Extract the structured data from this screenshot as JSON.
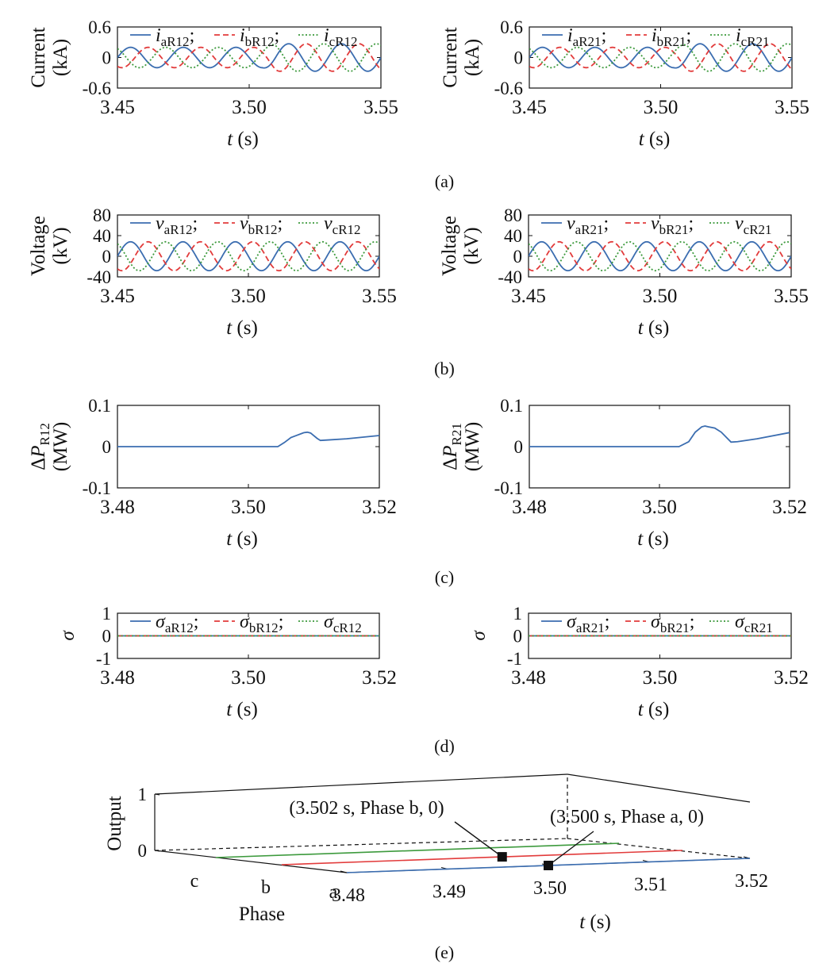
{
  "colors": {
    "a": "#3b6db0",
    "b": "#e23b3b",
    "c": "#3d9a3d",
    "axis": "#111111"
  },
  "panel_labels": [
    "(a)",
    "(b)",
    "(c)",
    "(d)",
    "(e)"
  ],
  "chart_data": [
    {
      "type": "line",
      "panel": "a",
      "side": "R12",
      "ylabel": [
        "Current",
        "(kA)"
      ],
      "xlabel": {
        "italic": "t",
        "rest": " (s)"
      },
      "xlim": [
        3.45,
        3.55
      ],
      "ylim": [
        -0.6,
        0.6
      ],
      "xticks": [
        "3.45",
        "3.50",
        "3.55"
      ],
      "yticks": [
        "0.6",
        "0",
        "-0.6"
      ],
      "legend": [
        {
          "sym": "i",
          "sub": "aR12",
          "sep": ";"
        },
        {
          "sym": "i",
          "sub": "bR12",
          "sep": ";"
        },
        {
          "sym": "i",
          "sub": "cR12",
          "sep": ""
        }
      ],
      "series": [
        {
          "phase": "a",
          "style": "solid",
          "freq_hz": 50,
          "phase_deg": 0,
          "amplitude": [
            [
              3.45,
              0.2
            ],
            [
              3.505,
              0.2
            ],
            [
              3.51,
              0.27
            ],
            [
              3.55,
              0.27
            ]
          ]
        },
        {
          "phase": "b",
          "style": "dashed",
          "freq_hz": 50,
          "phase_deg": -120,
          "amplitude": [
            [
              3.45,
              0.2
            ],
            [
              3.505,
              0.2
            ],
            [
              3.51,
              0.27
            ],
            [
              3.55,
              0.27
            ]
          ]
        },
        {
          "phase": "c",
          "style": "dotted",
          "freq_hz": 50,
          "phase_deg": 120,
          "amplitude": [
            [
              3.45,
              0.2
            ],
            [
              3.505,
              0.2
            ],
            [
              3.51,
              0.27
            ],
            [
              3.55,
              0.27
            ]
          ]
        }
      ]
    },
    {
      "type": "line",
      "panel": "a",
      "side": "R21",
      "ylabel": [
        "Current",
        "(kA)"
      ],
      "xlabel": {
        "italic": "t",
        "rest": " (s)"
      },
      "xlim": [
        3.45,
        3.55
      ],
      "ylim": [
        -0.6,
        0.6
      ],
      "xticks": [
        "3.45",
        "3.50",
        "3.55"
      ],
      "yticks": [
        "0.6",
        "0",
        "-0.6"
      ],
      "legend": [
        {
          "sym": "i",
          "sub": "aR21",
          "sep": ";"
        },
        {
          "sym": "i",
          "sub": "bR21",
          "sep": ";"
        },
        {
          "sym": "i",
          "sub": "cR21",
          "sep": ""
        }
      ],
      "series": [
        {
          "phase": "a",
          "style": "solid",
          "freq_hz": 50,
          "phase_deg": 0,
          "amplitude": [
            [
              3.45,
              0.2
            ],
            [
              3.505,
              0.2
            ],
            [
              3.51,
              0.27
            ],
            [
              3.55,
              0.27
            ]
          ]
        },
        {
          "phase": "b",
          "style": "dashed",
          "freq_hz": 50,
          "phase_deg": -120,
          "amplitude": [
            [
              3.45,
              0.2
            ],
            [
              3.505,
              0.2
            ],
            [
              3.51,
              0.27
            ],
            [
              3.55,
              0.27
            ]
          ]
        },
        {
          "phase": "c",
          "style": "dotted",
          "freq_hz": 50,
          "phase_deg": 120,
          "amplitude": [
            [
              3.45,
              0.2
            ],
            [
              3.505,
              0.2
            ],
            [
              3.51,
              0.27
            ],
            [
              3.55,
              0.27
            ]
          ]
        }
      ]
    },
    {
      "type": "line",
      "panel": "b",
      "side": "R12",
      "ylabel": [
        "Voltage",
        "(kV)"
      ],
      "xlabel": {
        "italic": "t",
        "rest": " (s)"
      },
      "xlim": [
        3.45,
        3.55
      ],
      "ylim": [
        -40,
        80
      ],
      "xticks": [
        "3.45",
        "3.50",
        "3.55"
      ],
      "yticks": [
        "80",
        "40",
        "0",
        "-40"
      ],
      "legend": [
        {
          "sym": "v",
          "sub": "aR12",
          "sep": ";"
        },
        {
          "sym": "v",
          "sub": "bR12",
          "sep": ";"
        },
        {
          "sym": "v",
          "sub": "cR12",
          "sep": ""
        }
      ],
      "series": [
        {
          "phase": "a",
          "style": "solid",
          "freq_hz": 50,
          "phase_deg": 0,
          "amplitude": [
            [
              3.45,
              28
            ],
            [
              3.55,
              28
            ]
          ]
        },
        {
          "phase": "b",
          "style": "dashed",
          "freq_hz": 50,
          "phase_deg": -120,
          "amplitude": [
            [
              3.45,
              28
            ],
            [
              3.55,
              28
            ]
          ]
        },
        {
          "phase": "c",
          "style": "dotted",
          "freq_hz": 50,
          "phase_deg": 120,
          "amplitude": [
            [
              3.45,
              28
            ],
            [
              3.55,
              28
            ]
          ]
        }
      ]
    },
    {
      "type": "line",
      "panel": "b",
      "side": "R21",
      "ylabel": [
        "Voltage",
        "(kV)"
      ],
      "xlabel": {
        "italic": "t",
        "rest": " (s)"
      },
      "xlim": [
        3.45,
        3.55
      ],
      "ylim": [
        -40,
        80
      ],
      "xticks": [
        "3.45",
        "3.50",
        "3.55"
      ],
      "yticks": [
        "80",
        "40",
        "0",
        "-40"
      ],
      "legend": [
        {
          "sym": "v",
          "sub": "aR21",
          "sep": ";"
        },
        {
          "sym": "v",
          "sub": "bR21",
          "sep": ";"
        },
        {
          "sym": "v",
          "sub": "cR21",
          "sep": ""
        }
      ],
      "series": [
        {
          "phase": "a",
          "style": "solid",
          "freq_hz": 50,
          "phase_deg": 0,
          "amplitude": [
            [
              3.45,
              28
            ],
            [
              3.55,
              28
            ]
          ]
        },
        {
          "phase": "b",
          "style": "dashed",
          "freq_hz": 50,
          "phase_deg": -120,
          "amplitude": [
            [
              3.45,
              28
            ],
            [
              3.55,
              28
            ]
          ]
        },
        {
          "phase": "c",
          "style": "dotted",
          "freq_hz": 50,
          "phase_deg": 120,
          "amplitude": [
            [
              3.45,
              28
            ],
            [
              3.55,
              28
            ]
          ]
        }
      ]
    },
    {
      "type": "line",
      "panel": "c",
      "side": "R12",
      "ylabel_delta": {
        "pre": "ΔP",
        "sub": "R12",
        "unit": "(MW)"
      },
      "xlabel": {
        "italic": "t",
        "rest": " (s)"
      },
      "xlim": [
        3.48,
        3.52
      ],
      "ylim": [
        -0.1,
        0.1
      ],
      "xticks": [
        "3.48",
        "3.50",
        "3.52"
      ],
      "yticks": [
        "0.1",
        "0",
        "-0.1"
      ],
      "series": [
        {
          "phase": "a",
          "style": "solid",
          "points": [
            [
              3.48,
              0
            ],
            [
              3.5045,
              0
            ],
            [
              3.5055,
              0.01
            ],
            [
              3.5065,
              0.022
            ],
            [
              3.5075,
              0.028
            ],
            [
              3.5085,
              0.034
            ],
            [
              3.509,
              0.035
            ],
            [
              3.5095,
              0.033
            ],
            [
              3.5105,
              0.02
            ],
            [
              3.511,
              0.015
            ],
            [
              3.512,
              0.016
            ],
            [
              3.515,
              0.019
            ],
            [
              3.52,
              0.027
            ]
          ]
        }
      ]
    },
    {
      "type": "line",
      "panel": "c",
      "side": "R21",
      "ylabel_delta": {
        "pre": "ΔP",
        "sub": "R21",
        "unit": "(MW)"
      },
      "xlabel": {
        "italic": "t",
        "rest": " (s)"
      },
      "xlim": [
        3.48,
        3.52
      ],
      "ylim": [
        -0.1,
        0.1
      ],
      "xticks": [
        "3.48",
        "3.50",
        "3.52"
      ],
      "yticks": [
        "0.1",
        "0",
        "-0.1"
      ],
      "series": [
        {
          "phase": "a",
          "style": "solid",
          "points": [
            [
              3.48,
              0
            ],
            [
              3.503,
              0
            ],
            [
              3.5045,
              0.012
            ],
            [
              3.5055,
              0.035
            ],
            [
              3.5065,
              0.048
            ],
            [
              3.507,
              0.05
            ],
            [
              3.5075,
              0.048
            ],
            [
              3.5085,
              0.045
            ],
            [
              3.5095,
              0.035
            ],
            [
              3.511,
              0.011
            ],
            [
              3.512,
              0.012
            ],
            [
              3.515,
              0.019
            ],
            [
              3.52,
              0.034
            ]
          ]
        }
      ]
    },
    {
      "type": "line",
      "panel": "d",
      "side": "R12",
      "ylabel_sigma": "σ",
      "xlabel": {
        "italic": "t",
        "rest": " (s)"
      },
      "xlim": [
        3.48,
        3.52
      ],
      "ylim": [
        -1,
        1
      ],
      "xticks": [
        "3.48",
        "3.50",
        "3.52"
      ],
      "yticks": [
        "1",
        "0",
        "-1"
      ],
      "legend": [
        {
          "sym": "σ",
          "sub": "aR12",
          "sep": ";"
        },
        {
          "sym": "σ",
          "sub": "bR12",
          "sep": ";"
        },
        {
          "sym": "σ",
          "sub": "cR12",
          "sep": ""
        }
      ],
      "series": [
        {
          "phase": "a",
          "style": "solid",
          "points": [
            [
              3.48,
              0
            ],
            [
              3.52,
              0
            ]
          ]
        },
        {
          "phase": "b",
          "style": "dashed",
          "points": [
            [
              3.48,
              0
            ],
            [
              3.52,
              0
            ]
          ]
        },
        {
          "phase": "c",
          "style": "dotted",
          "points": [
            [
              3.48,
              0
            ],
            [
              3.52,
              0
            ]
          ]
        }
      ]
    },
    {
      "type": "line",
      "panel": "d",
      "side": "R21",
      "ylabel_sigma": "σ",
      "xlabel": {
        "italic": "t",
        "rest": " (s)"
      },
      "xlim": [
        3.48,
        3.52
      ],
      "ylim": [
        -1,
        1
      ],
      "xticks": [
        "3.48",
        "3.50",
        "3.52"
      ],
      "yticks": [
        "1",
        "0",
        "-1"
      ],
      "legend": [
        {
          "sym": "σ",
          "sub": "aR21",
          "sep": ";"
        },
        {
          "sym": "σ",
          "sub": "bR21",
          "sep": ";"
        },
        {
          "sym": "σ",
          "sub": "cR21",
          "sep": ""
        }
      ],
      "series": [
        {
          "phase": "a",
          "style": "solid",
          "points": [
            [
              3.48,
              0
            ],
            [
              3.52,
              0
            ]
          ]
        },
        {
          "phase": "b",
          "style": "dashed",
          "points": [
            [
              3.48,
              0
            ],
            [
              3.52,
              0
            ]
          ]
        },
        {
          "phase": "c",
          "style": "dotted",
          "points": [
            [
              3.48,
              0
            ],
            [
              3.52,
              0
            ]
          ]
        }
      ]
    },
    {
      "type": "line3d",
      "panel": "e",
      "zlabel": "Output",
      "ylabel": "Phase",
      "xlabel": {
        "italic": "t",
        "rest": " (s)"
      },
      "xlim": [
        3.48,
        3.52
      ],
      "zlim": [
        0,
        1
      ],
      "xticks": [
        "3.48",
        "3.49",
        "3.50",
        "3.51",
        "3.52"
      ],
      "zticks": [
        "1",
        "0"
      ],
      "phase_labels": [
        "c",
        "b",
        "a"
      ],
      "series": [
        {
          "phase": "a",
          "output": [
            [
              3.48,
              0
            ],
            [
              3.52,
              0
            ]
          ]
        },
        {
          "phase": "b",
          "output": [
            [
              3.48,
              0
            ],
            [
              3.52,
              0
            ]
          ]
        },
        {
          "phase": "c",
          "output": [
            [
              3.48,
              0
            ],
            [
              3.52,
              0
            ]
          ]
        }
      ],
      "annotations": [
        {
          "text": "(3.502 s, Phase b, 0)",
          "t": 3.502,
          "phase": "b",
          "value": 0
        },
        {
          "text": "(3.500 s, Phase a, 0)",
          "t": 3.5,
          "phase": "a",
          "value": 0
        }
      ]
    }
  ]
}
